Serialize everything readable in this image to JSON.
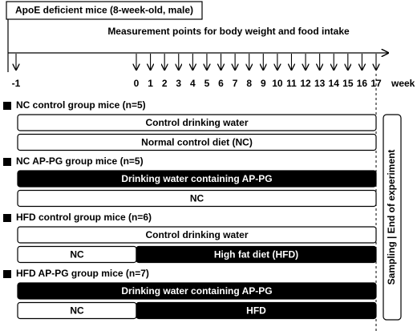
{
  "header": {
    "title": "ApoE deficient mice (8-week-old, male)"
  },
  "timeline": {
    "label": "Measurement points for body weight and food intake",
    "unit": "week",
    "points": [
      -1,
      0,
      1,
      2,
      3,
      4,
      5,
      6,
      7,
      8,
      9,
      10,
      11,
      12,
      13,
      14,
      15,
      16,
      17
    ]
  },
  "groups": [
    {
      "title": "NC control group mice (n=5)",
      "bars": [
        [
          {
            "label": "Control drinking water",
            "fill": "white"
          }
        ],
        [
          {
            "label": "Normal control diet (NC)",
            "fill": "white"
          }
        ]
      ]
    },
    {
      "title": "NC AP-PG group mice (n=5)",
      "bars": [
        [
          {
            "label": "Drinking water containing AP-PG",
            "fill": "black"
          }
        ],
        [
          {
            "label": "NC",
            "fill": "white"
          }
        ]
      ]
    },
    {
      "title": "HFD control group mice (n=6)",
      "bars": [
        [
          {
            "label": "Control drinking water",
            "fill": "white"
          }
        ],
        [
          {
            "label": "NC",
            "fill": "white"
          },
          {
            "label": "High fat diet (HFD)",
            "fill": "black"
          }
        ]
      ]
    },
    {
      "title": "HFD AP-PG group mice (n=7)",
      "bars": [
        [
          {
            "label": "Drinking water containing AP-PG",
            "fill": "black"
          }
        ],
        [
          {
            "label": "NC",
            "fill": "white"
          },
          {
            "label": "HFD",
            "fill": "black"
          }
        ]
      ]
    }
  ],
  "endpoint": {
    "label": "Sampling | End of experiment"
  }
}
